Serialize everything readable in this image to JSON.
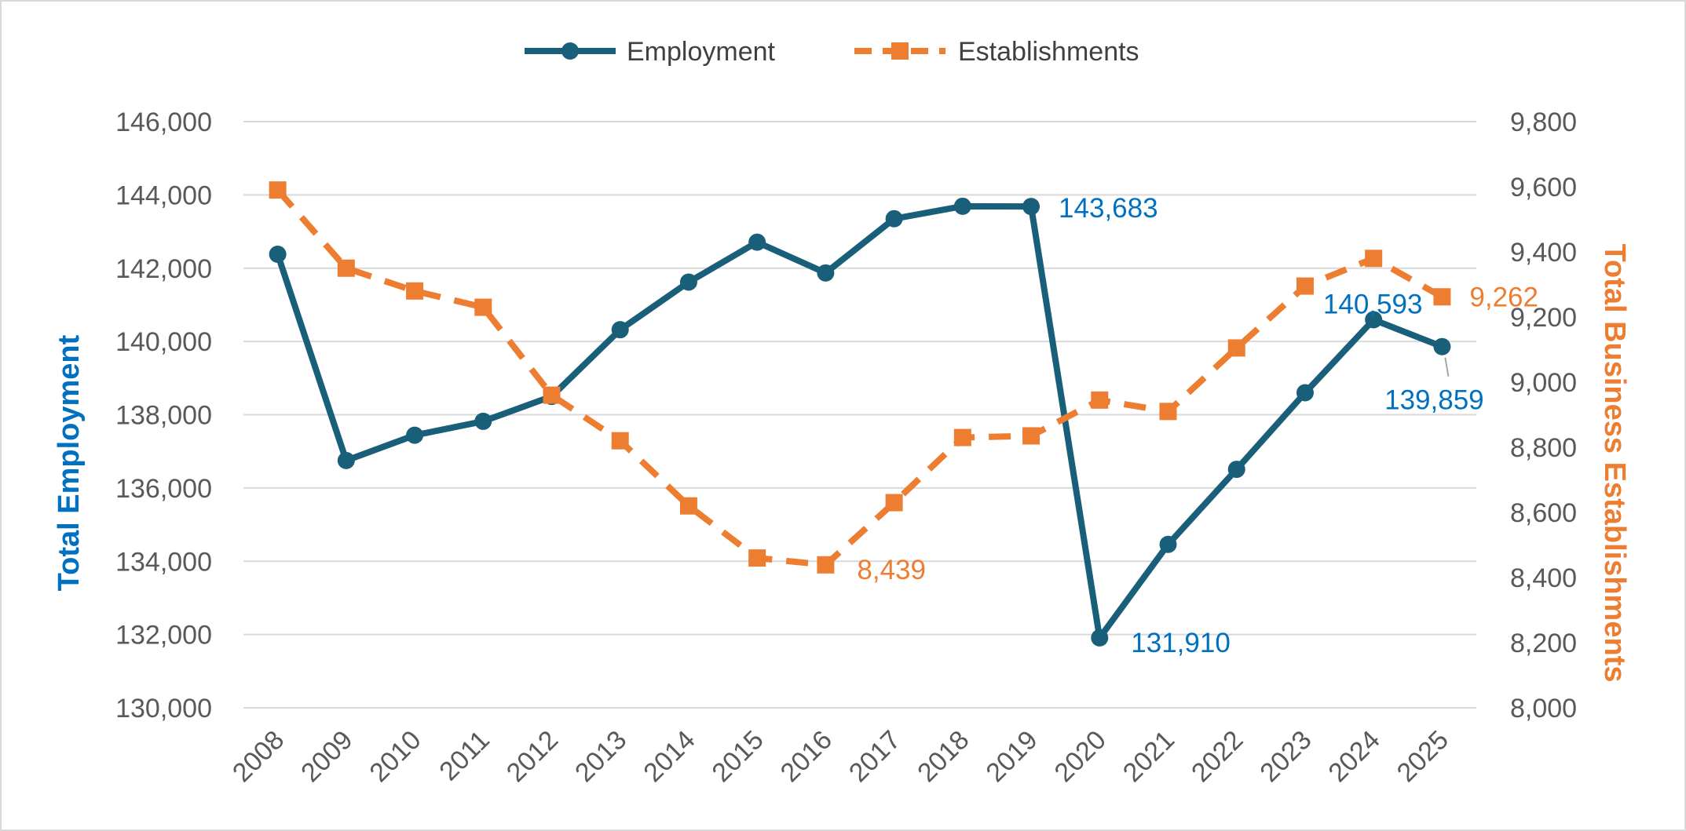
{
  "chart_data": {
    "type": "line",
    "title": "",
    "x": [
      "2008",
      "2009",
      "2010",
      "2011",
      "2012",
      "2013",
      "2014",
      "2015",
      "2016",
      "2017",
      "2018",
      "2019",
      "2020",
      "2021",
      "2022",
      "2023",
      "2024",
      "2025"
    ],
    "xlabel": "",
    "y_axes": {
      "left": {
        "label": "Total Employment",
        "range": [
          130000,
          146000
        ],
        "step": 2000,
        "ticks": [
          "130,000",
          "132,000",
          "134,000",
          "136,000",
          "138,000",
          "140,000",
          "142,000",
          "144,000",
          "146,000"
        ],
        "color": "#0070c0"
      },
      "right": {
        "label": "Total Business Establishments",
        "range": [
          8000,
          9800
        ],
        "step": 200,
        "ticks": [
          "8,000",
          "8,200",
          "8,400",
          "8,600",
          "8,800",
          "9,000",
          "9,200",
          "9,400",
          "9,600",
          "9,800"
        ],
        "color": "#ed7d31"
      }
    },
    "series": [
      {
        "name": "Employment",
        "axis": "left",
        "line_style": "solid",
        "marker": "circle",
        "color": "#1a5f7a",
        "label_color": "#0070c0",
        "values": [
          142380,
          136750,
          137440,
          137820,
          138500,
          140320,
          141620,
          142710,
          141870,
          143350,
          143690,
          143683,
          131910,
          134460,
          136510,
          138600,
          140593,
          139859
        ],
        "data_labels": [
          {
            "index": 11,
            "text": "143,683"
          },
          {
            "index": 12,
            "text": "131,910"
          },
          {
            "index": 16,
            "text": "140,593"
          },
          {
            "index": 17,
            "text": "139,859"
          }
        ]
      },
      {
        "name": "Establishments",
        "axis": "right",
        "line_style": "dashed",
        "marker": "square",
        "color": "#ed7d31",
        "label_color": "#ed7d31",
        "values": [
          9590,
          9350,
          9280,
          9230,
          8960,
          8820,
          8620,
          8460,
          8439,
          8630,
          8830,
          8835,
          8945,
          8910,
          9105,
          9295,
          9380,
          9262
        ],
        "data_labels": [
          {
            "index": 8,
            "text": "8,439"
          },
          {
            "index": 17,
            "text": "9,262"
          }
        ]
      }
    ],
    "grid": true,
    "legend_position": "top-center"
  }
}
